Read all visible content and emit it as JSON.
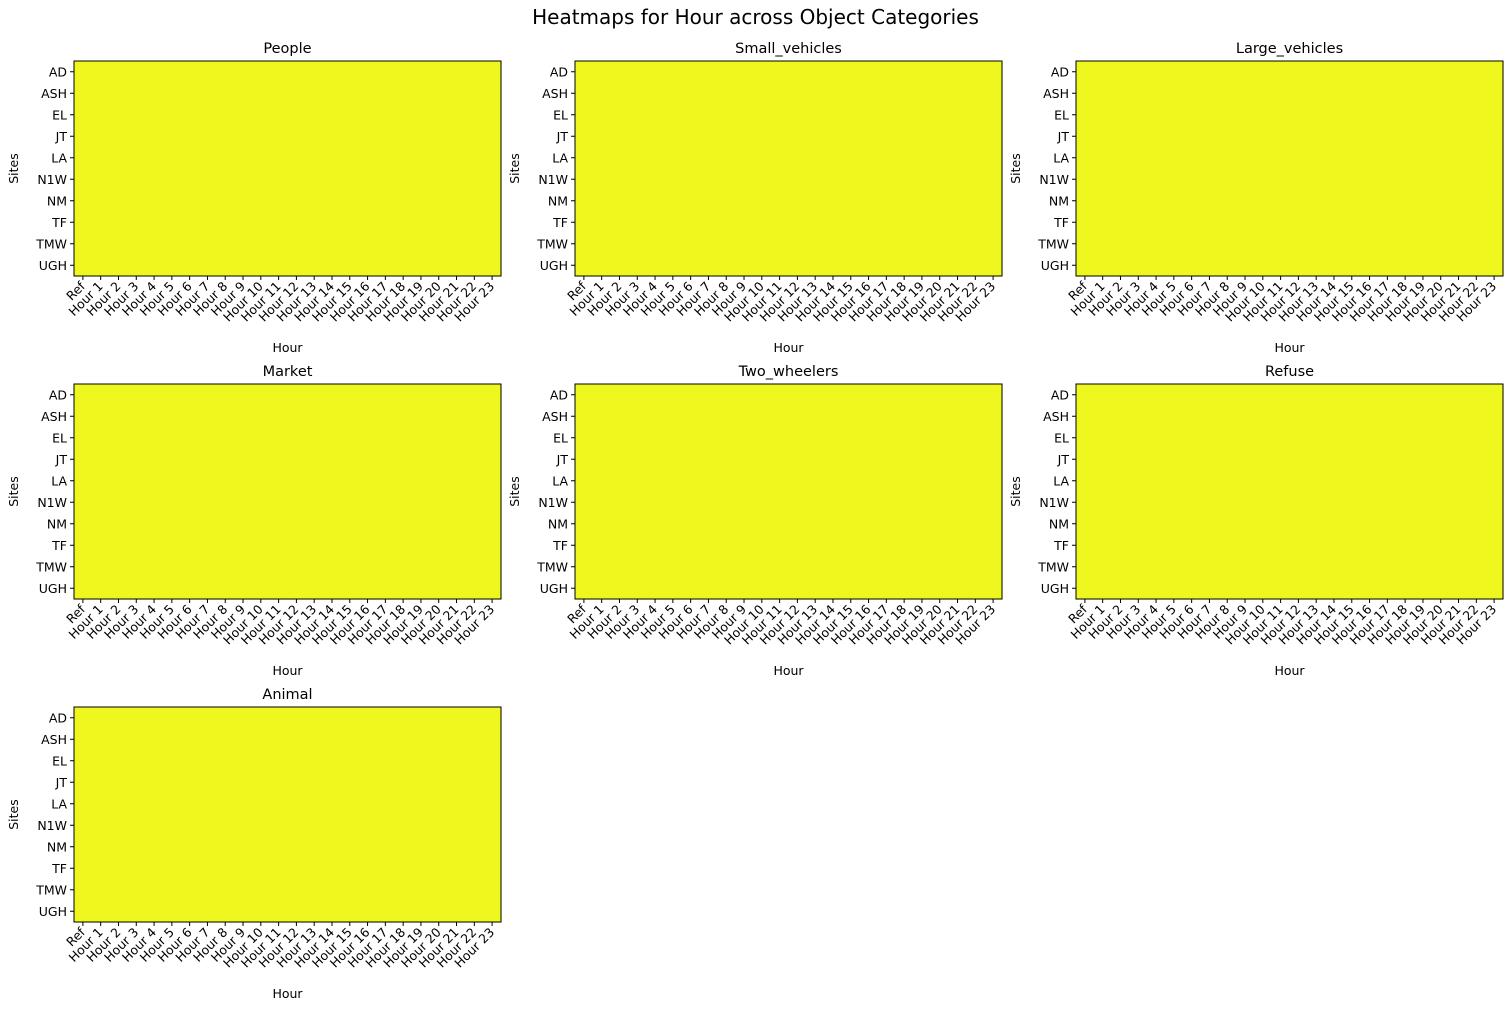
{
  "figure": {
    "title": "Heatmaps for Hour across Object Categories",
    "cell_color": "#eef81e",
    "frame_color": "#000000"
  },
  "chart_data": [
    {
      "type": "heatmap",
      "title": "People",
      "xlabel": "Hour",
      "ylabel": "Sites",
      "x": [
        "Ref",
        "Hour 1",
        "Hour 2",
        "Hour 3",
        "Hour 4",
        "Hour 5",
        "Hour 6",
        "Hour 7",
        "Hour 8",
        "Hour 9",
        "Hour 10",
        "Hour 11",
        "Hour 12",
        "Hour 13",
        "Hour 14",
        "Hour 15",
        "Hour 16",
        "Hour 17",
        "Hour 18",
        "Hour 19",
        "Hour 20",
        "Hour 21",
        "Hour 22",
        "Hour 23"
      ],
      "y": [
        "AD",
        "ASH",
        "EL",
        "JT",
        "LA",
        "N1W",
        "NM",
        "TF",
        "TMW",
        "UGH"
      ],
      "uniform_color": "#eef81e"
    },
    {
      "type": "heatmap",
      "title": "Small_vehicles",
      "xlabel": "Hour",
      "ylabel": "Sites",
      "x": [
        "Ref",
        "Hour 1",
        "Hour 2",
        "Hour 3",
        "Hour 4",
        "Hour 5",
        "Hour 6",
        "Hour 7",
        "Hour 8",
        "Hour 9",
        "Hour 10",
        "Hour 11",
        "Hour 12",
        "Hour 13",
        "Hour 14",
        "Hour 15",
        "Hour 16",
        "Hour 17",
        "Hour 18",
        "Hour 19",
        "Hour 20",
        "Hour 21",
        "Hour 22",
        "Hour 23"
      ],
      "y": [
        "AD",
        "ASH",
        "EL",
        "JT",
        "LA",
        "N1W",
        "NM",
        "TF",
        "TMW",
        "UGH"
      ],
      "uniform_color": "#eef81e"
    },
    {
      "type": "heatmap",
      "title": "Large_vehicles",
      "xlabel": "Hour",
      "ylabel": "Sites",
      "x": [
        "Ref",
        "Hour 1",
        "Hour 2",
        "Hour 3",
        "Hour 4",
        "Hour 5",
        "Hour 6",
        "Hour 7",
        "Hour 8",
        "Hour 9",
        "Hour 10",
        "Hour 11",
        "Hour 12",
        "Hour 13",
        "Hour 14",
        "Hour 15",
        "Hour 16",
        "Hour 17",
        "Hour 18",
        "Hour 19",
        "Hour 20",
        "Hour 21",
        "Hour 22",
        "Hour 23"
      ],
      "y": [
        "AD",
        "ASH",
        "EL",
        "JT",
        "LA",
        "N1W",
        "NM",
        "TF",
        "TMW",
        "UGH"
      ],
      "uniform_color": "#eef81e"
    },
    {
      "type": "heatmap",
      "title": "Market",
      "xlabel": "Hour",
      "ylabel": "Sites",
      "x": [
        "Ref",
        "Hour 1",
        "Hour 2",
        "Hour 3",
        "Hour 4",
        "Hour 5",
        "Hour 6",
        "Hour 7",
        "Hour 8",
        "Hour 9",
        "Hour 10",
        "Hour 11",
        "Hour 12",
        "Hour 13",
        "Hour 14",
        "Hour 15",
        "Hour 16",
        "Hour 17",
        "Hour 18",
        "Hour 19",
        "Hour 20",
        "Hour 21",
        "Hour 22",
        "Hour 23"
      ],
      "y": [
        "AD",
        "ASH",
        "EL",
        "JT",
        "LA",
        "N1W",
        "NM",
        "TF",
        "TMW",
        "UGH"
      ],
      "uniform_color": "#eef81e"
    },
    {
      "type": "heatmap",
      "title": "Two_wheelers",
      "xlabel": "Hour",
      "ylabel": "Sites",
      "x": [
        "Ref",
        "Hour 1",
        "Hour 2",
        "Hour 3",
        "Hour 4",
        "Hour 5",
        "Hour 6",
        "Hour 7",
        "Hour 8",
        "Hour 9",
        "Hour 10",
        "Hour 11",
        "Hour 12",
        "Hour 13",
        "Hour 14",
        "Hour 15",
        "Hour 16",
        "Hour 17",
        "Hour 18",
        "Hour 19",
        "Hour 20",
        "Hour 21",
        "Hour 22",
        "Hour 23"
      ],
      "y": [
        "AD",
        "ASH",
        "EL",
        "JT",
        "LA",
        "N1W",
        "NM",
        "TF",
        "TMW",
        "UGH"
      ],
      "uniform_color": "#eef81e"
    },
    {
      "type": "heatmap",
      "title": "Refuse",
      "xlabel": "Hour",
      "ylabel": "Sites",
      "x": [
        "Ref",
        "Hour 1",
        "Hour 2",
        "Hour 3",
        "Hour 4",
        "Hour 5",
        "Hour 6",
        "Hour 7",
        "Hour 8",
        "Hour 9",
        "Hour 10",
        "Hour 11",
        "Hour 12",
        "Hour 13",
        "Hour 14",
        "Hour 15",
        "Hour 16",
        "Hour 17",
        "Hour 18",
        "Hour 19",
        "Hour 20",
        "Hour 21",
        "Hour 22",
        "Hour 23"
      ],
      "y": [
        "AD",
        "ASH",
        "EL",
        "JT",
        "LA",
        "N1W",
        "NM",
        "TF",
        "TMW",
        "UGH"
      ],
      "uniform_color": "#eef81e"
    },
    {
      "type": "heatmap",
      "title": "Animal",
      "xlabel": "Hour",
      "ylabel": "Sites",
      "x": [
        "Ref",
        "Hour 1",
        "Hour 2",
        "Hour 3",
        "Hour 4",
        "Hour 5",
        "Hour 6",
        "Hour 7",
        "Hour 8",
        "Hour 9",
        "Hour 10",
        "Hour 11",
        "Hour 12",
        "Hour 13",
        "Hour 14",
        "Hour 15",
        "Hour 16",
        "Hour 17",
        "Hour 18",
        "Hour 19",
        "Hour 20",
        "Hour 21",
        "Hour 22",
        "Hour 23"
      ],
      "y": [
        "AD",
        "ASH",
        "EL",
        "JT",
        "LA",
        "N1W",
        "NM",
        "TF",
        "TMW",
        "UGH"
      ],
      "uniform_color": "#eef81e"
    }
  ]
}
